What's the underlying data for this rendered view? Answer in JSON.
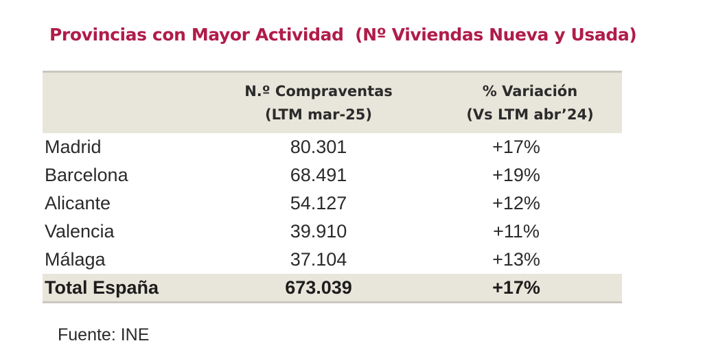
{
  "title": "Provincias con Mayor Actividad  (Nº Viviendas Nueva y Usada)",
  "table": {
    "headers": [
      {
        "line1": "",
        "line2": ""
      },
      {
        "line1": "N.º Compraventas",
        "line2": "(LTM mar-25)"
      },
      {
        "line1": "% Variación",
        "line2": "(Vs LTM abr’24)"
      }
    ],
    "rows": [
      {
        "province": "Madrid",
        "sales": "80.301",
        "variation": "+17%"
      },
      {
        "province": "Barcelona",
        "sales": "68.491",
        "variation": "+19%"
      },
      {
        "province": "Alicante",
        "sales": "54.127",
        "variation": "+12%"
      },
      {
        "province": "Valencia",
        "sales": "39.910",
        "variation": "+11%"
      },
      {
        "province": "Málaga",
        "sales": "37.104",
        "variation": "+13%"
      }
    ],
    "total": {
      "label": "Total España",
      "sales": "673.039",
      "variation": "+17%"
    }
  },
  "source": "Fuente: INE",
  "colors": {
    "title": "#b01c4a",
    "header_bg": "#e8e5da"
  }
}
